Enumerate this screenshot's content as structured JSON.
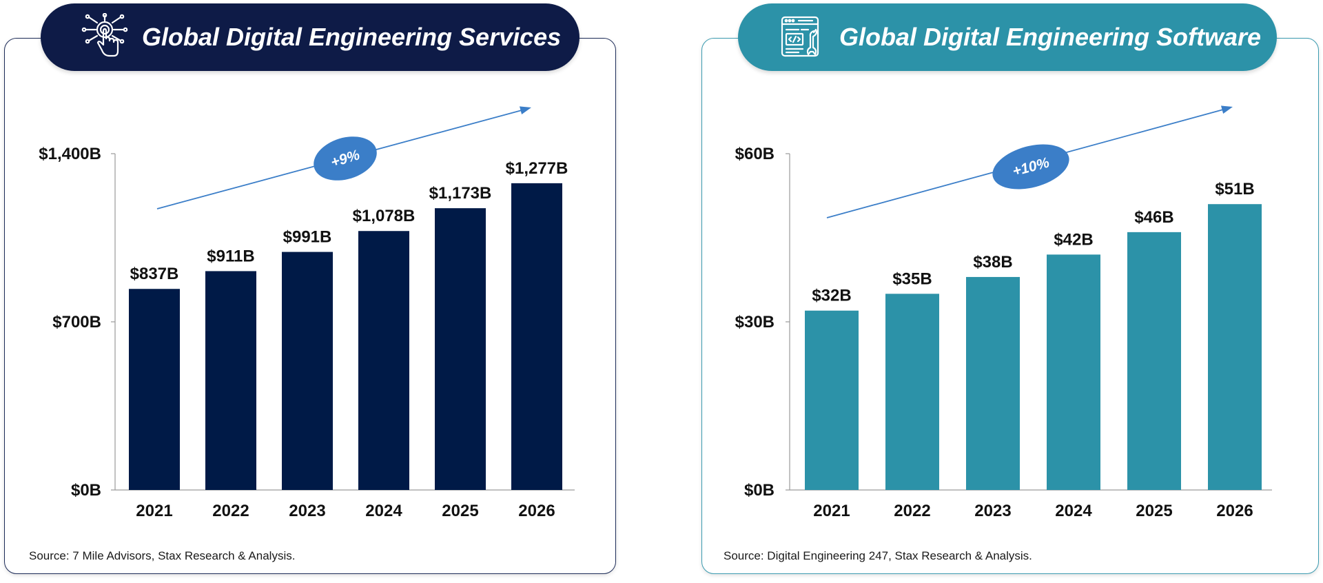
{
  "chart_data": [
    {
      "type": "bar",
      "title": "Global Digital Engineering Services",
      "categories": [
        "2021",
        "2022",
        "2023",
        "2024",
        "2025",
        "2026"
      ],
      "values": [
        837,
        911,
        991,
        1078,
        1173,
        1277
      ],
      "value_labels": [
        "$837B",
        "$911B",
        "$991B",
        "$1,078B",
        "$1,173B",
        "$1,277B"
      ],
      "ylim": [
        0,
        1400
      ],
      "yticks": [
        0,
        700,
        1400
      ],
      "ytick_labels": [
        "$0B",
        "$700B",
        "$1,400B"
      ],
      "xlabel": "",
      "ylabel": "",
      "grid": false,
      "annotation": "+9%",
      "source": "Source:  7 Mile Advisors, Stax Research & Analysis.",
      "colors": {
        "bar": "#001a47",
        "title_bg": "#0e1b47",
        "arrow": "#3b7ec8",
        "badge": "#3b7ec8"
      }
    },
    {
      "type": "bar",
      "title": "Global Digital Engineering Software",
      "categories": [
        "2021",
        "2022",
        "2023",
        "2024",
        "2025",
        "2026"
      ],
      "values": [
        32,
        35,
        38,
        42,
        46,
        51
      ],
      "value_labels": [
        "$32B",
        "$35B",
        "$38B",
        "$42B",
        "$46B",
        "$51B"
      ],
      "ylim": [
        0,
        60
      ],
      "yticks": [
        0,
        30,
        60
      ],
      "ytick_labels": [
        "$0B",
        "$30B",
        "$60B"
      ],
      "xlabel": "",
      "ylabel": "",
      "grid": false,
      "annotation": "+10%",
      "source": "Source:  Digital Engineering 247, Stax Research & Analysis.",
      "colors": {
        "bar": "#2c92a8",
        "title_bg": "#2c92a8",
        "arrow": "#3b7ec8",
        "badge": "#3b7ec8"
      }
    }
  ]
}
